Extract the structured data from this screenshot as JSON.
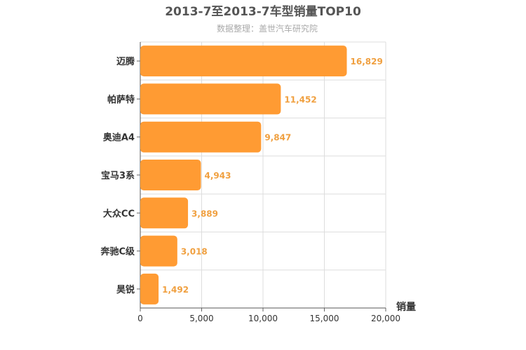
{
  "chart_data": {
    "type": "bar",
    "orientation": "horizontal",
    "title": "2013-7至2013-7车型销量TOP10",
    "subtitle": "数据整理：盖世汽车研究院",
    "xlabel": "销量",
    "ylabel": "",
    "categories": [
      "迈腾",
      "帕萨特",
      "奥迪A4",
      "宝马3系",
      "大众CC",
      "奔驰C级",
      "昊锐"
    ],
    "values": [
      16829,
      11452,
      9847,
      4943,
      3889,
      3018,
      1492
    ],
    "value_labels": [
      "16,829",
      "11,452",
      "9,847",
      "4,943",
      "3,889",
      "3,018",
      "1,492"
    ],
    "xlim": [
      0,
      20000
    ],
    "xticks": [
      0,
      5000,
      10000,
      15000,
      20000
    ],
    "xtick_labels": [
      "0",
      "5,000",
      "10,000",
      "15,000",
      "20,000"
    ],
    "grid": true,
    "legend": "none",
    "bar_color": "#ff9b33"
  }
}
